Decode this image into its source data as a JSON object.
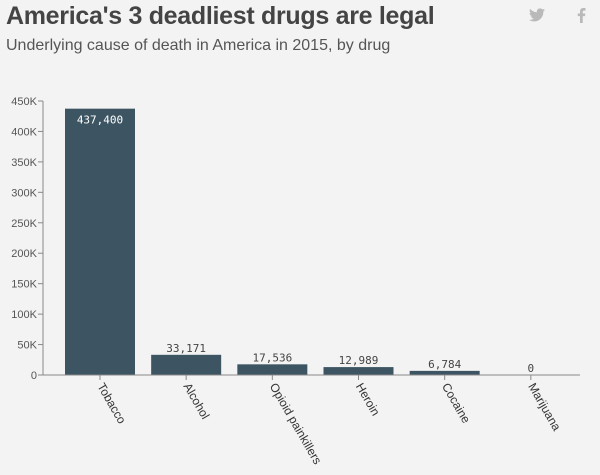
{
  "header": {
    "title": "America's 3 deadliest drugs  are legal",
    "subtitle": "Underlying cause  of death  in America  in 2015, by drug"
  },
  "share": {
    "twitter_icon": "twitter-icon",
    "facebook_icon": "facebook-icon"
  },
  "colors": {
    "bar": "#3d5563",
    "axis": "#888888",
    "grid": "#d5d5d5",
    "icon": "#b9b9b9"
  },
  "chart_data": {
    "type": "bar",
    "title": "America's 3 deadliest drugs  are legal",
    "subtitle": "Underlying cause  of death  in America  in 2015, by drug",
    "categories": [
      "Tobacco",
      "Alcohol",
      "Opioid painkillers",
      "Heroin",
      "Cocaine",
      "Marijuana"
    ],
    "values": [
      437400,
      33171,
      17536,
      12989,
      6784,
      0
    ],
    "data_labels": [
      "437,400",
      "33,171",
      "17,536",
      "12,989",
      "6,784",
      "0"
    ],
    "ylim": [
      0,
      450000
    ],
    "yticks": [
      0,
      50000,
      100000,
      150000,
      200000,
      250000,
      300000,
      350000,
      400000,
      450000
    ],
    "ytick_labels": [
      "0",
      "50K",
      "100K",
      "150K",
      "200K",
      "250K",
      "300K",
      "350K",
      "400K",
      "450K"
    ],
    "grid": false,
    "legend": "none"
  }
}
